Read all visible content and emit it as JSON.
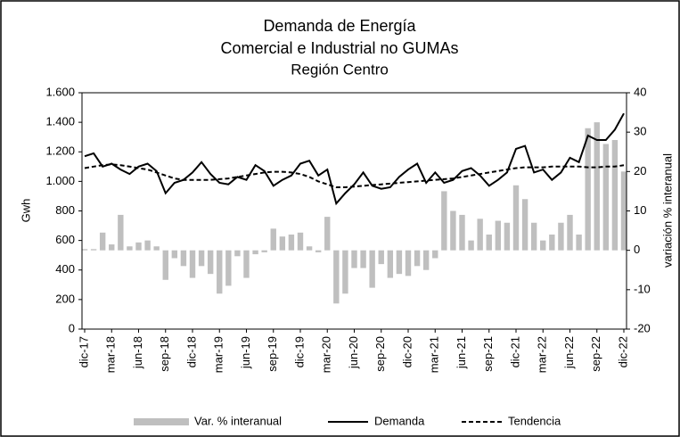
{
  "chart_data": {
    "type": "bar_line",
    "title": "Demanda de Energía",
    "title_line2": "Comercial e Industrial no GUMAs",
    "subtitle": "Región Centro",
    "y_label": "Gwh",
    "y2_label": "variación % interanual",
    "categories": [
      "dic-17",
      null,
      null,
      "mar-18",
      null,
      null,
      "jun-18",
      null,
      null,
      "sep-18",
      null,
      null,
      "dic-18",
      null,
      null,
      "mar-19",
      null,
      null,
      "jun-19",
      null,
      null,
      "sep-19",
      null,
      null,
      "dic-19",
      null,
      null,
      "mar-20",
      null,
      null,
      "jun-20",
      null,
      null,
      "sep-20",
      null,
      null,
      "dic-20",
      null,
      null,
      "mar-21",
      null,
      null,
      "jun-21",
      null,
      null,
      "sep-21",
      null,
      null,
      "dic-21",
      null,
      null,
      "mar-22",
      null,
      null,
      "jun-22",
      null,
      null,
      "sep-22",
      null,
      null,
      "dic-22"
    ],
    "series": [
      {
        "name": "Var. % interanual",
        "kind": "bar",
        "axis": "y2",
        "color": "#bfbfbf",
        "values": [
          0.3,
          0.3,
          4.5,
          1.5,
          9,
          1,
          2,
          2.5,
          1,
          -7.5,
          -2,
          -4,
          -7,
          -4,
          -6,
          -11,
          -9,
          -1.5,
          -7,
          -1,
          -0.5,
          5.5,
          3.5,
          4,
          4.5,
          1,
          -0.5,
          8.5,
          -13.5,
          -11,
          -4.5,
          -4.5,
          -9.5,
          -3.5,
          -7,
          -6,
          -6.5,
          -4,
          -5,
          -2,
          15,
          10,
          9,
          2.5,
          8,
          4,
          7.5,
          7,
          16.5,
          13,
          7,
          2.5,
          4,
          7,
          9,
          4,
          31,
          32.5,
          27,
          28,
          20
        ]
      },
      {
        "name": "Demanda",
        "kind": "line",
        "color": "#000000",
        "dashed": false,
        "values": [
          1170,
          1190,
          1100,
          1120,
          1080,
          1050,
          1100,
          1120,
          1070,
          920,
          990,
          1010,
          1060,
          1130,
          1050,
          990,
          980,
          1030,
          1010,
          1110,
          1070,
          970,
          1010,
          1040,
          1120,
          1140,
          1040,
          1080,
          850,
          920,
          980,
          1060,
          970,
          950,
          960,
          1030,
          1080,
          1120,
          990,
          1060,
          990,
          1010,
          1070,
          1090,
          1040,
          970,
          1010,
          1060,
          1220,
          1240,
          1060,
          1080,
          1010,
          1060,
          1160,
          1130,
          1310,
          1280,
          1280,
          1350,
          1460
        ]
      },
      {
        "name": "Tendencia",
        "kind": "line",
        "color": "#000000",
        "dashed": true,
        "values": [
          1090,
          1100,
          1110,
          1115,
          1110,
          1100,
          1090,
          1080,
          1060,
          1040,
          1020,
          1010,
          1010,
          1010,
          1010,
          1015,
          1020,
          1030,
          1040,
          1050,
          1060,
          1065,
          1065,
          1060,
          1050,
          1030,
          1000,
          980,
          960,
          960,
          965,
          970,
          975,
          980,
          985,
          990,
          995,
          1000,
          1005,
          1010,
          1015,
          1020,
          1030,
          1040,
          1050,
          1060,
          1070,
          1080,
          1090,
          1095,
          1095,
          1095,
          1100,
          1100,
          1100,
          1100,
          1095,
          1095,
          1100,
          1100,
          1110
        ]
      }
    ],
    "ylim": [
      0,
      1600
    ],
    "yticks": [
      0,
      {
        "value": 200,
        "label": "200"
      },
      400,
      600,
      800,
      {
        "value": 1000,
        "label": "1.000"
      },
      {
        "value": 1200,
        "label": "1.200"
      },
      {
        "value": 1400,
        "label": "1.400"
      },
      {
        "value": 1600,
        "label": "1.600"
      }
    ],
    "y2lim": [
      -20,
      40
    ],
    "y2ticks": [
      -20,
      -10,
      0,
      10,
      20,
      30,
      40
    ],
    "legend": "bottom"
  }
}
